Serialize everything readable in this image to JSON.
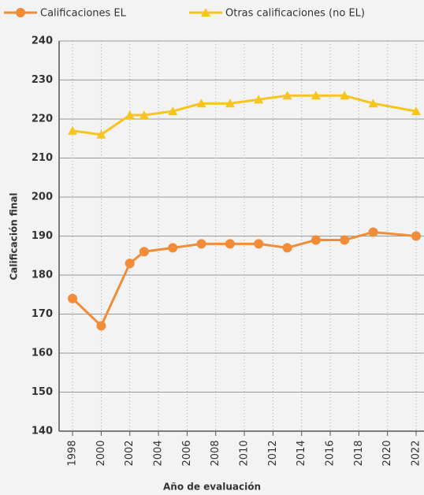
{
  "chart_data": {
    "type": "line",
    "x": [
      1998,
      2000,
      2002,
      2003,
      2005,
      2007,
      2009,
      2011,
      2013,
      2015,
      2017,
      2019,
      2022
    ],
    "series": [
      {
        "name": "Calificaciones EL",
        "color": "#f28c38",
        "marker": "circle",
        "values": [
          174,
          167,
          183,
          186,
          187,
          188,
          188,
          188,
          187,
          189,
          189,
          191,
          190
        ]
      },
      {
        "name": "Otras calificaciones (no EL)",
        "color": "#f7c51e",
        "marker": "triangle",
        "values": [
          217,
          216,
          221,
          221,
          222,
          224,
          224,
          225,
          226,
          226,
          226,
          224,
          222
        ]
      }
    ],
    "xlabel": "Año de evaluación",
    "ylabel": "Calificación final",
    "xlim": [
      1997.06,
      2022.55
    ],
    "ylim": [
      140,
      240
    ],
    "xticks": [
      1998,
      2000,
      2002,
      2004,
      2006,
      2008,
      2010,
      2012,
      2014,
      2016,
      2018,
      2020,
      2022
    ],
    "yticks": [
      140,
      150,
      160,
      170,
      180,
      190,
      200,
      210,
      220,
      230,
      240
    ],
    "grid": true,
    "legend": "top"
  }
}
